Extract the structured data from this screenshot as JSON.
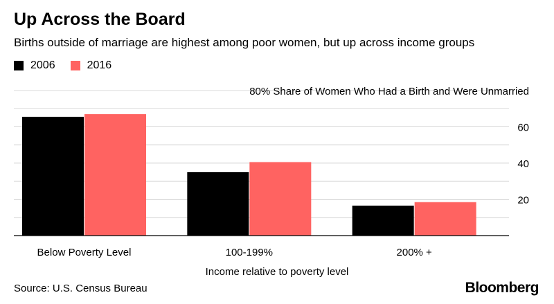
{
  "chart_data": {
    "type": "bar",
    "title": "Up Across the Board",
    "subtitle": "Births outside of marriage are highest among poor women, but up across income groups",
    "ylabel": "Share of Women Who Had a Birth and Were Unmarried",
    "y_top_tick_label": "80%",
    "xlabel": "Income relative to poverty level",
    "categories": [
      "Below Poverty Level",
      "100-199%",
      "200% +"
    ],
    "series": [
      {
        "name": "2006",
        "color": "#000000",
        "values": [
          65.5,
          35,
          16.5
        ]
      },
      {
        "name": "2016",
        "color": "#ff6361",
        "values": [
          67,
          40.5,
          18.5
        ]
      }
    ],
    "ylim": [
      0,
      80
    ],
    "yticks": [
      20,
      40,
      60
    ],
    "grid": true,
    "legend_position": "top-left"
  },
  "source": "Source: U.S. Census Bureau",
  "brand": "Bloomberg"
}
